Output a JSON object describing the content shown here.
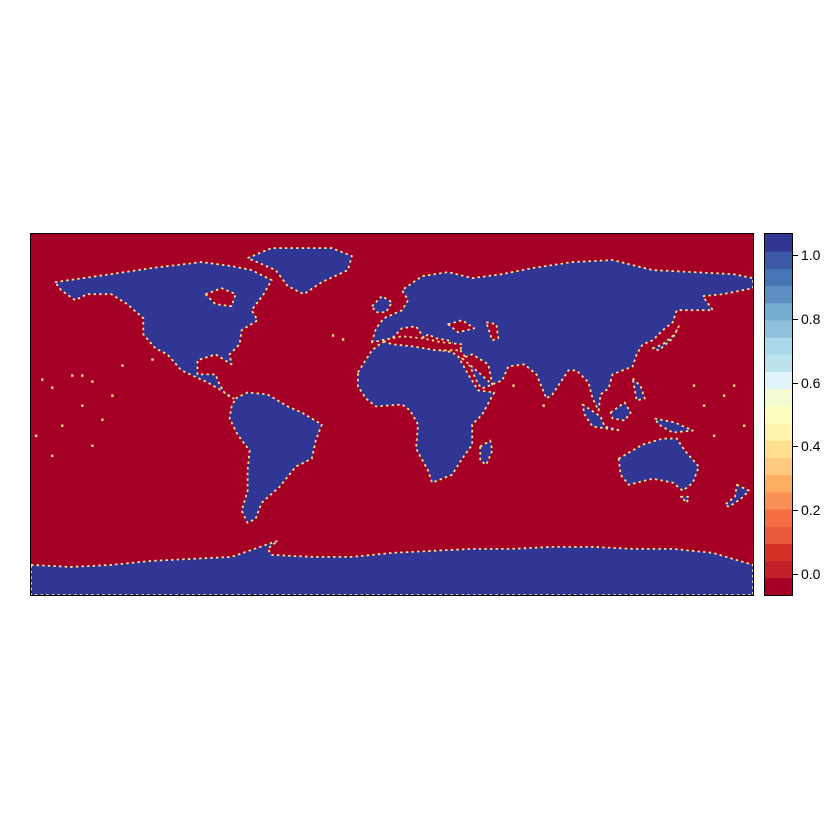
{
  "map": {
    "land_color": "#313695",
    "water_color": "#a50026",
    "coast_color": "#fee090"
  },
  "legend": {
    "min": -0.0667,
    "max": 1.0667,
    "colors": [
      "#a50026",
      "#c2212a",
      "#d73027",
      "#eb5a3a",
      "#f46d43",
      "#f99157",
      "#fdae61",
      "#fec980",
      "#fee090",
      "#fff3ac",
      "#ffffbf",
      "#f4fbd2",
      "#e0f3f8",
      "#bce2ed",
      "#abd9e9",
      "#8fc1dd",
      "#74add1",
      "#5d8fc2",
      "#4575b4",
      "#3c59a6",
      "#313695"
    ],
    "ticks": [
      {
        "value": 0.0,
        "label": "0.0"
      },
      {
        "value": 0.2,
        "label": "0.2"
      },
      {
        "value": 0.4,
        "label": "0.4"
      },
      {
        "value": 0.6,
        "label": "0.6"
      },
      {
        "value": 0.8,
        "label": "0.8"
      },
      {
        "value": 1.0,
        "label": "1.0"
      }
    ]
  }
}
